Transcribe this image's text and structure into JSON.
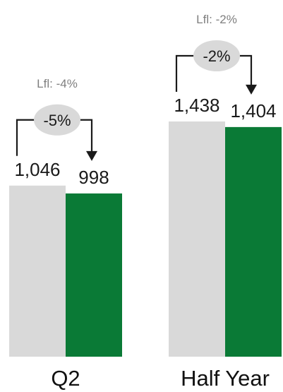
{
  "chart_data": {
    "type": "bar",
    "categories": [
      "Q2",
      "Half Year"
    ],
    "series": [
      {
        "values": [
          1046,
          1438
        ],
        "color": "#d9d9d9"
      },
      {
        "values": [
          998,
          1404
        ],
        "color": "#0a7a36"
      }
    ],
    "value_labels": [
      [
        "1,046",
        "998"
      ],
      [
        "1,438",
        "1,404"
      ]
    ],
    "changes": [
      "-5%",
      "-2%"
    ],
    "lfl_labels": [
      "Lfl: -4%",
      "Lfl: -2%"
    ],
    "ylim": [
      0,
      1438
    ],
    "grid": false,
    "legend": "none",
    "colors": {
      "prior": "#d9d9d9",
      "current": "#0a7a36",
      "change_bubble": "#d9d9d9",
      "arrow": "#1a1a1a",
      "lfl_text": "#7f7f7f"
    }
  }
}
